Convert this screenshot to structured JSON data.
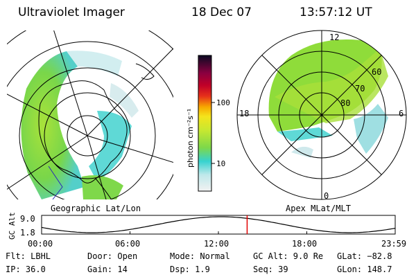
{
  "header": {
    "instrument": "Ultraviolet Imager",
    "date": "18 Dec 07",
    "time": "13:57:12 UT"
  },
  "left_panel": {
    "caption": "Geographic Lat/Lon"
  },
  "right_panel": {
    "caption": "Apex MLat/MLT",
    "mlt_labels": {
      "top": "12",
      "left": "18",
      "right": "6",
      "bottom": "0"
    },
    "lat_labels": [
      "60",
      "70",
      "80"
    ]
  },
  "colorbar": {
    "unit": "photon cm⁻²s⁻¹",
    "ticks": [
      "100",
      "10"
    ]
  },
  "timeline": {
    "ylabel": "GC Alt",
    "ymax_label": "9.0",
    "ymin_label": "1.8",
    "xticks": [
      "00:00",
      "06:00",
      "12:00",
      "18:00",
      "23:59"
    ],
    "current_time_hours": 13.95
  },
  "status": {
    "row1": {
      "flt": "Flt: LBHL",
      "door": "Door: Open",
      "mode": "Mode: Normal",
      "gcalt": "GC Alt: 9.0 Re",
      "glat": "GLat: −82.8"
    },
    "row2": {
      "ip": "IP: 36.0",
      "gain": "Gain: 14",
      "dsp": "Dsp:    1.9",
      "seq": "Seq: 39",
      "glon": "GLon: 148.7"
    }
  },
  "colors": {
    "marker": "#e00000",
    "fill_green": "#8fdc3a",
    "fill_cyan": "#5fd9d6",
    "grid": "#000000"
  }
}
